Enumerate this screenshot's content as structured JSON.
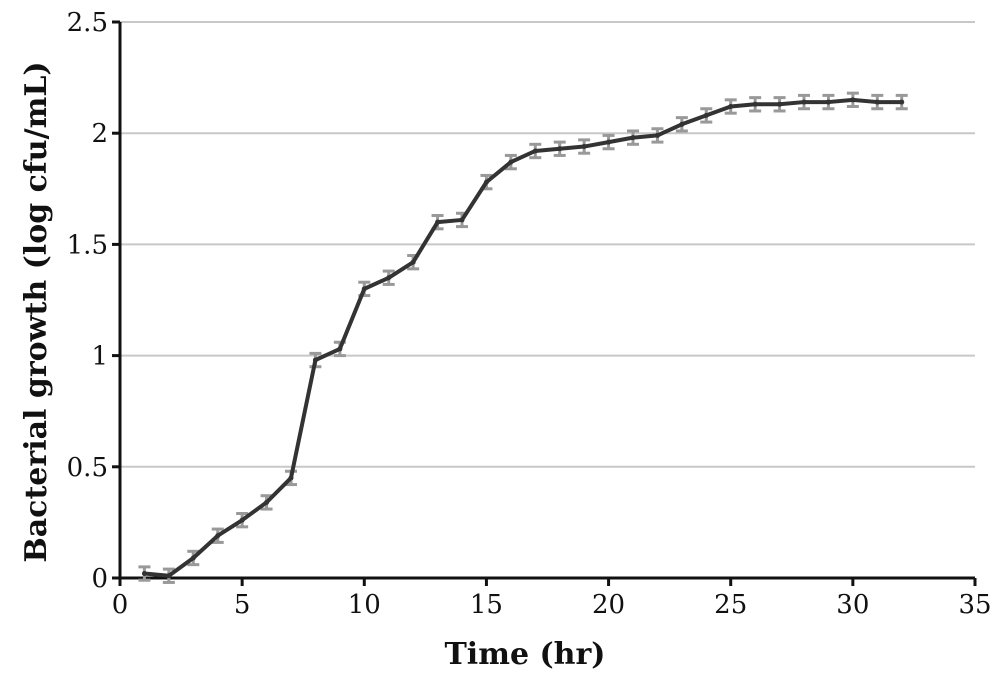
{
  "chart_data": {
    "type": "line",
    "title": "",
    "xlabel": "Time (hr)",
    "ylabel": "Bacterial growth (log cfu/mL)",
    "xlim": [
      0,
      35
    ],
    "ylim": [
      0,
      2.5
    ],
    "x_ticks": [
      0,
      5,
      10,
      15,
      20,
      25,
      30,
      35
    ],
    "y_ticks": [
      0,
      0.5,
      1,
      1.5,
      2,
      2.5
    ],
    "x_tick_labels": [
      "0",
      "5",
      "10",
      "15",
      "20",
      "25",
      "30",
      "35"
    ],
    "y_tick_labels": [
      "0",
      "0.5",
      "1",
      "1.5",
      "2",
      "2.5"
    ],
    "grid": "horizontal",
    "series": [
      {
        "x": [
          1,
          2,
          3,
          4,
          5,
          6,
          7,
          8,
          9,
          10,
          11,
          12,
          13,
          14,
          15,
          16,
          17,
          18,
          19,
          20,
          21,
          22,
          23,
          24,
          25,
          26,
          27,
          28,
          29,
          30,
          31,
          32
        ],
        "values": [
          0.02,
          0.01,
          0.09,
          0.19,
          0.26,
          0.34,
          0.45,
          0.98,
          1.03,
          1.3,
          1.35,
          1.42,
          1.6,
          1.61,
          1.78,
          1.87,
          1.92,
          1.93,
          1.94,
          1.96,
          1.98,
          1.99,
          2.04,
          2.08,
          2.12,
          2.13,
          2.13,
          2.14,
          2.14,
          2.15,
          2.14,
          2.14
        ],
        "error": [
          0.03,
          0.03,
          0.03,
          0.03,
          0.03,
          0.03,
          0.03,
          0.03,
          0.03,
          0.03,
          0.03,
          0.03,
          0.03,
          0.03,
          0.03,
          0.03,
          0.03,
          0.03,
          0.03,
          0.03,
          0.03,
          0.03,
          0.03,
          0.03,
          0.03,
          0.03,
          0.03,
          0.03,
          0.03,
          0.03,
          0.03,
          0.03
        ],
        "color": "#333333",
        "error_color": "#999999"
      }
    ],
    "colors": {
      "axis": "#111111",
      "grid": "#c8c8c8"
    }
  }
}
